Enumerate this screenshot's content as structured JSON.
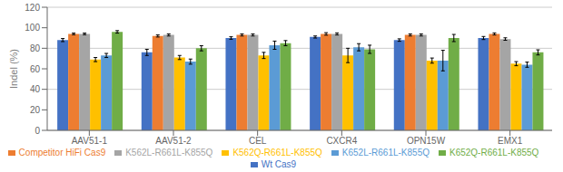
{
  "chart_data": {
    "type": "bar",
    "ylabel": "Indel (%)",
    "categories": [
      "AAV51-1",
      "AAV51-2",
      "CEL",
      "CXCR4",
      "OPN15W",
      "EMX1"
    ],
    "series": [
      {
        "name": "Wt Cas9",
        "color": "#4472C4",
        "values": [
          88,
          76,
          90,
          91,
          88,
          90
        ],
        "errors": [
          1.5,
          3.0,
          1.2,
          1.0,
          1.2,
          1.5
        ]
      },
      {
        "name": "Competitor HiFi Cas9",
        "color": "#ED7D31",
        "values": [
          94,
          92,
          93,
          94,
          93,
          94
        ],
        "errors": [
          0.8,
          1.0,
          1.0,
          1.2,
          1.0,
          1.0
        ]
      },
      {
        "name": "K562L-R661L-K855Q",
        "color": "#A5A5A5",
        "values": [
          94,
          93,
          93,
          94,
          93,
          89
        ],
        "errors": [
          0.8,
          1.0,
          1.0,
          1.0,
          1.0,
          1.2
        ]
      },
      {
        "name": "K562Q-R661L-K855Q",
        "color": "#FFC000",
        "values": [
          69,
          71,
          73,
          73,
          68,
          65
        ],
        "errors": [
          2.0,
          2.0,
          3.0,
          7.0,
          2.5,
          2.0
        ]
      },
      {
        "name": "K652L-R661L-K855Q",
        "color": "#5B9BD5",
        "values": [
          73,
          67,
          83,
          81,
          68,
          64
        ],
        "errors": [
          2.0,
          2.5,
          4.0,
          3.5,
          10.0,
          2.5
        ]
      },
      {
        "name": "K652Q-R661L-K855Q",
        "color": "#70AD47",
        "values": [
          96,
          80,
          85,
          79,
          90,
          76
        ],
        "errors": [
          1.2,
          2.5,
          2.5,
          4.0,
          3.5,
          2.5
        ]
      }
    ],
    "ylim": [
      0,
      120
    ],
    "yticks": [
      0,
      20,
      40,
      60,
      80,
      100,
      120
    ],
    "grid": true,
    "legend": "bottom"
  }
}
